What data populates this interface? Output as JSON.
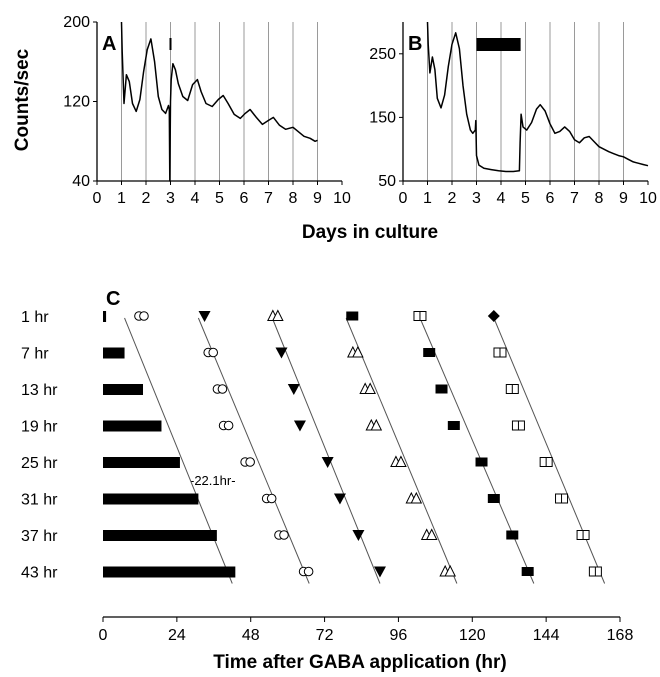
{
  "chart_data": [
    {
      "panel": "A",
      "type": "line",
      "ylabel": "Counts/sec",
      "xlabel": "Days in culture",
      "xlim": [
        0,
        10
      ],
      "ylim": [
        40,
        200
      ],
      "x_ticks": [
        "0",
        "1",
        "2",
        "3",
        "4",
        "5",
        "6",
        "7",
        "8",
        "9",
        "10"
      ],
      "y_ticks": [
        "40",
        "120",
        "200"
      ],
      "vertical_gridlines_at_days": [
        1,
        2,
        3,
        4,
        5,
        6,
        7,
        8,
        9
      ],
      "treatment_marker_day": 3,
      "series": [
        {
          "x": [
            1.0,
            1.03,
            1.1,
            1.2,
            1.32,
            1.45,
            1.6,
            1.75,
            1.9,
            2.05,
            2.2,
            2.35,
            2.5,
            2.65,
            2.8,
            2.92,
            2.95,
            2.97,
            3.0,
            3.03,
            3.1,
            3.2,
            3.32,
            3.5,
            3.7,
            3.9,
            4.1,
            4.25,
            4.45,
            4.7,
            4.95,
            5.15,
            5.35,
            5.6,
            5.85,
            6.05,
            6.25,
            6.5,
            6.75,
            7.0,
            7.2,
            7.45,
            7.7,
            8.0,
            8.2,
            8.45,
            8.7,
            8.9,
            9.0
          ],
          "y": [
            200,
            170,
            118,
            147,
            140,
            118,
            110,
            122,
            150,
            172,
            183,
            160,
            125,
            112,
            108,
            116,
            112,
            40,
            120,
            142,
            158,
            152,
            138,
            125,
            121,
            137,
            142,
            130,
            118,
            115,
            122,
            126,
            118,
            107,
            103,
            108,
            112,
            104,
            97,
            101,
            104,
            96,
            92,
            94,
            90,
            85,
            83,
            80,
            81
          ]
        }
      ]
    },
    {
      "panel": "B",
      "type": "line",
      "xlabel": "Days in culture",
      "xlim": [
        0,
        10
      ],
      "ylim": [
        50,
        300
      ],
      "x_ticks": [
        "0",
        "1",
        "2",
        "3",
        "4",
        "5",
        "6",
        "7",
        "8",
        "9",
        "10"
      ],
      "y_ticks": [
        "50",
        "150",
        "250"
      ],
      "vertical_gridlines_at_days": [
        1,
        2,
        3,
        4,
        5,
        6,
        7,
        8,
        9
      ],
      "treatment_bar_days": [
        3.0,
        4.8
      ],
      "series": [
        {
          "x": [
            1.0,
            1.03,
            1.1,
            1.2,
            1.3,
            1.4,
            1.55,
            1.7,
            1.85,
            2.0,
            2.15,
            2.3,
            2.45,
            2.6,
            2.75,
            2.85,
            2.95,
            2.97,
            3.0,
            3.1,
            3.3,
            3.6,
            3.9,
            4.2,
            4.5,
            4.75,
            4.78,
            4.82,
            4.9,
            5.05,
            5.25,
            5.45,
            5.6,
            5.8,
            6.0,
            6.2,
            6.4,
            6.6,
            6.8,
            7.0,
            7.2,
            7.4,
            7.6,
            7.8,
            8.0,
            8.2,
            8.4,
            8.6,
            8.8,
            9.0,
            9.2,
            9.4,
            9.6,
            9.8,
            10.0
          ],
          "y": [
            300,
            265,
            220,
            245,
            225,
            180,
            165,
            185,
            230,
            265,
            283,
            258,
            200,
            155,
            130,
            125,
            130,
            145,
            90,
            75,
            70,
            68,
            66,
            65,
            65,
            66,
            110,
            155,
            135,
            130,
            142,
            163,
            170,
            160,
            140,
            125,
            128,
            135,
            128,
            115,
            110,
            118,
            120,
            112,
            104,
            100,
            96,
            93,
            90,
            88,
            84,
            80,
            78,
            76,
            74
          ]
        }
      ]
    },
    {
      "panel": "C",
      "type": "scatter",
      "xlabel": "Time after GABA application (hr)",
      "xlim": [
        0,
        168
      ],
      "x_ticks": [
        "0",
        "24",
        "48",
        "72",
        "96",
        "120",
        "144",
        "168"
      ],
      "rows": [
        "1 hr",
        "7 hr",
        "13 hr",
        "19 hr",
        "25 hr",
        "31 hr",
        "37 hr",
        "43 hr"
      ],
      "gaba_durations_hr": [
        1,
        7,
        13,
        19,
        25,
        31,
        37,
        43
      ],
      "annotation": "-22.1hr-",
      "marker_series": [
        {
          "marker": "open-circle",
          "x": [
            12.5,
            35,
            38,
            40,
            47,
            54,
            58,
            66
          ]
        },
        {
          "marker": "filled-triangle",
          "x": [
            33,
            58,
            62,
            64,
            73,
            77,
            83,
            90
          ]
        },
        {
          "marker": "open-triangle",
          "x": [
            56,
            82,
            86,
            88,
            96,
            101,
            106,
            112
          ]
        },
        {
          "marker": "filled-rectangle",
          "x": [
            81,
            106,
            110,
            114,
            123,
            127,
            133,
            138
          ]
        },
        {
          "marker": "open-rectangle",
          "x": [
            103,
            129,
            133,
            135,
            144,
            149,
            156,
            160
          ]
        },
        {
          "marker": "filled-diamond",
          "x": [
            127
          ]
        }
      ],
      "trend_lines": [
        {
          "x": [
            7,
            42
          ]
        },
        {
          "x": [
            31,
            67
          ]
        },
        {
          "x": [
            55,
            90
          ]
        },
        {
          "x": [
            79,
            115
          ]
        },
        {
          "x": [
            103,
            140
          ]
        },
        {
          "x": [
            127,
            163
          ]
        }
      ]
    }
  ]
}
